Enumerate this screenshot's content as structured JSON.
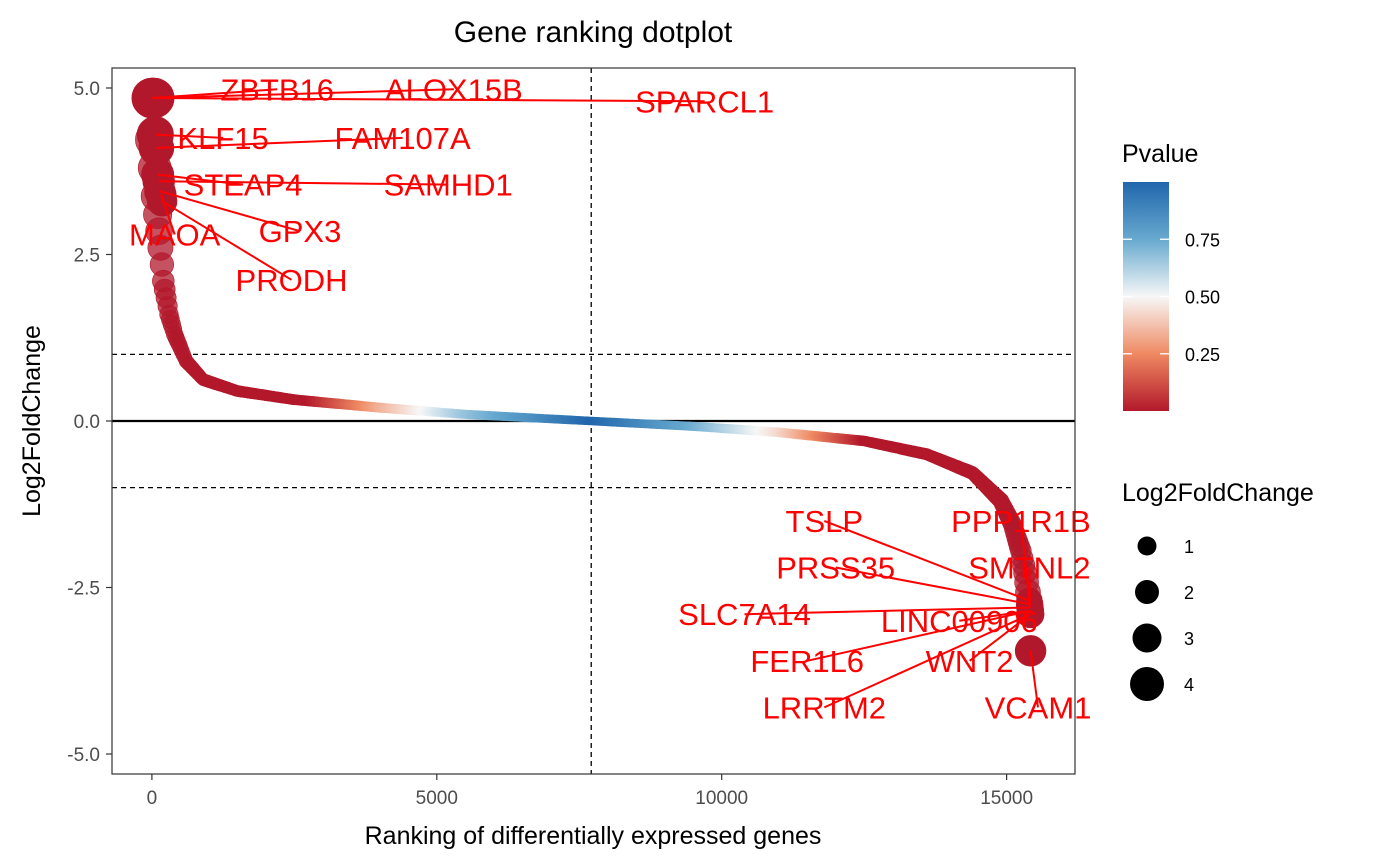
{
  "chart_data": {
    "type": "scatter",
    "title": "Gene ranking dotplot",
    "xlabel": "Ranking of differentially expressed genes",
    "ylabel": "Log2FoldChange",
    "xlim": [
      -700,
      16200
    ],
    "ylim": [
      -5.3,
      5.3
    ],
    "x_ticks": [
      0,
      5000,
      10000,
      15000
    ],
    "x_tick_labels": [
      "0",
      "5000",
      "10000",
      "15000"
    ],
    "y_ticks": [
      5.0,
      2.5,
      0.0,
      -2.5,
      -5.0
    ],
    "y_tick_labels": [
      "5.0",
      "2.5",
      "0.0",
      "-2.5",
      "-5.0"
    ],
    "grid": false,
    "n_genes": 15420,
    "reference_lines": {
      "horizontal_solid": [
        0
      ],
      "horizontal_dashed": [
        1,
        -1
      ],
      "vertical_dashed": [
        7710
      ]
    },
    "curve_profile": [
      [
        0,
        4.85
      ],
      [
        20,
        4.3
      ],
      [
        40,
        4.0
      ],
      [
        60,
        3.6
      ],
      [
        80,
        3.3
      ],
      [
        100,
        3.1
      ],
      [
        200,
        2.1
      ],
      [
        300,
        1.6
      ],
      [
        400,
        1.3
      ],
      [
        600,
        0.9
      ],
      [
        900,
        0.62
      ],
      [
        1500,
        0.45
      ],
      [
        2500,
        0.32
      ],
      [
        4000,
        0.2
      ],
      [
        5500,
        0.1
      ],
      [
        7710,
        0.0
      ],
      [
        9500,
        -0.08
      ],
      [
        11000,
        -0.17
      ],
      [
        12500,
        -0.3
      ],
      [
        13600,
        -0.5
      ],
      [
        14400,
        -0.78
      ],
      [
        14900,
        -1.2
      ],
      [
        15100,
        -1.55
      ],
      [
        15250,
        -1.95
      ],
      [
        15330,
        -2.3
      ],
      [
        15380,
        -2.6
      ],
      [
        15410,
        -2.85
      ],
      [
        15420,
        -3.45
      ]
    ],
    "highlighted_genes": [
      {
        "gene": "ZBTB16",
        "x": 0,
        "y": 4.85
      },
      {
        "gene": "ALOX15B",
        "x": 20,
        "y": 4.85
      },
      {
        "gene": "SPARCL1",
        "x": 40,
        "y": 4.85
      },
      {
        "gene": "KLF15",
        "x": 60,
        "y": 4.3
      },
      {
        "gene": "FAM107A",
        "x": 80,
        "y": 4.1
      },
      {
        "gene": "STEAP4",
        "x": 100,
        "y": 3.7
      },
      {
        "gene": "SAMHD1",
        "x": 120,
        "y": 3.6
      },
      {
        "gene": "GPX3",
        "x": 140,
        "y": 3.45
      },
      {
        "gene": "MAOA",
        "x": 160,
        "y": 3.4
      },
      {
        "gene": "PRODH",
        "x": 180,
        "y": 3.3
      },
      {
        "gene": "TSLP",
        "x": 15400,
        "y": -2.7
      },
      {
        "gene": "PPP1R1B",
        "x": 15405,
        "y": -2.75
      },
      {
        "gene": "PRSS35",
        "x": 15408,
        "y": -2.75
      },
      {
        "gene": "SMTNL2",
        "x": 15410,
        "y": -2.8
      },
      {
        "gene": "SLC7A14",
        "x": 15412,
        "y": -2.8
      },
      {
        "gene": "LINC00906",
        "x": 15414,
        "y": -2.85
      },
      {
        "gene": "FER1L6",
        "x": 15415,
        "y": -2.85
      },
      {
        "gene": "WNT2",
        "x": 15417,
        "y": -2.9
      },
      {
        "gene": "LRRTM2",
        "x": 15418,
        "y": -2.9
      },
      {
        "gene": "VCAM1",
        "x": 15420,
        "y": -3.45
      }
    ],
    "labels": [
      {
        "text": "ZBTB16",
        "x": 2200,
        "y": 4.98
      },
      {
        "text": "ALOX15B",
        "x": 5300,
        "y": 4.98
      },
      {
        "text": "SPARCL1",
        "x": 9700,
        "y": 4.8
      },
      {
        "text": "KLF15",
        "x": 1250,
        "y": 4.25
      },
      {
        "text": "FAM107A",
        "x": 4400,
        "y": 4.25
      },
      {
        "text": "STEAP4",
        "x": 1600,
        "y": 3.55
      },
      {
        "text": "SAMHD1",
        "x": 5200,
        "y": 3.55
      },
      {
        "text": "GPX3",
        "x": 2600,
        "y": 2.85
      },
      {
        "text": "MAOA",
        "x": 400,
        "y": 2.8
      },
      {
        "text": "PRODH",
        "x": 2450,
        "y": 2.12
      },
      {
        "text": "TSLP",
        "x": 11800,
        "y": -1.5
      },
      {
        "text": "PPP1R1B",
        "x": 15250,
        "y": -1.5
      },
      {
        "text": "PRSS35",
        "x": 12000,
        "y": -2.2
      },
      {
        "text": "SMTNL2",
        "x": 15400,
        "y": -2.2
      },
      {
        "text": "SLC7A14",
        "x": 10400,
        "y": -2.9
      },
      {
        "text": "LINC00906",
        "x": 14170,
        "y": -3.0
      },
      {
        "text": "FER1L6",
        "x": 11500,
        "y": -3.6
      },
      {
        "text": "WNT2",
        "x": 14350,
        "y": -3.6
      },
      {
        "text": "LRRTM2",
        "x": 11800,
        "y": -4.3
      },
      {
        "text": "VCAM1",
        "x": 15550,
        "y": -4.3
      }
    ],
    "legend_pvalue": {
      "title": "Pvalue",
      "tick_values": [
        0.75,
        0.5,
        0.25
      ],
      "tick_labels": [
        "0.75",
        "0.50",
        "0.25"
      ],
      "range": [
        0.0,
        1.0
      ],
      "colors": [
        "#b2182b",
        "#ef8a62",
        "#f7f7f7",
        "#67a9cf",
        "#2166ac"
      ]
    },
    "legend_size": {
      "title": "Log2FoldChange",
      "values": [
        1,
        2,
        3,
        4
      ],
      "labels": [
        "1",
        "2",
        "3",
        "4"
      ]
    },
    "colors": {
      "label_text": "#ff0000",
      "significant": "#b2182b",
      "neutral": "#f7f7f7",
      "nonsignificant": "#2166ac"
    }
  }
}
